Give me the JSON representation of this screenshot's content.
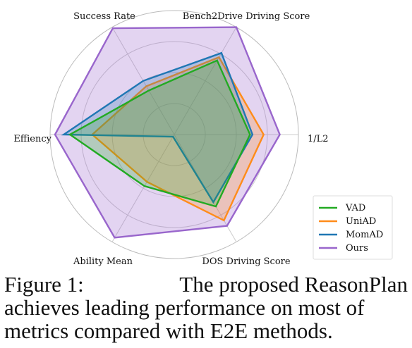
{
  "caption": {
    "label": "Figure 1:",
    "line1_rest": "The proposed ReasonPlan",
    "line2": "achieves leading performance on most of",
    "line3": "metrics compared with E2E methods."
  },
  "chart_data": {
    "type": "radar",
    "axes": [
      "Bench2Drive Driving Score",
      "1/L2",
      "DOS Driving Score",
      "Ability Mean",
      "Effiency",
      "Success Rate"
    ],
    "rmax": 1.0,
    "grid": true,
    "legend_position": "bottom-right",
    "series": [
      {
        "name": "VAD",
        "color": "#22aa22",
        "values": [
          0.69,
          0.61,
          0.67,
          0.48,
          0.84,
          0.41
        ]
      },
      {
        "name": "UniAD",
        "color": "#ff8c1a",
        "values": [
          0.72,
          0.72,
          0.8,
          0.44,
          0.66,
          0.45
        ]
      },
      {
        "name": "MomAD",
        "color": "#1f77b4",
        "values": [
          0.76,
          0.63,
          0.63,
          0.02,
          0.89,
          0.5
        ]
      },
      {
        "name": "Ours",
        "color": "#9966cc",
        "values": [
          1.0,
          0.85,
          0.85,
          0.96,
          0.96,
          0.99
        ]
      }
    ]
  }
}
